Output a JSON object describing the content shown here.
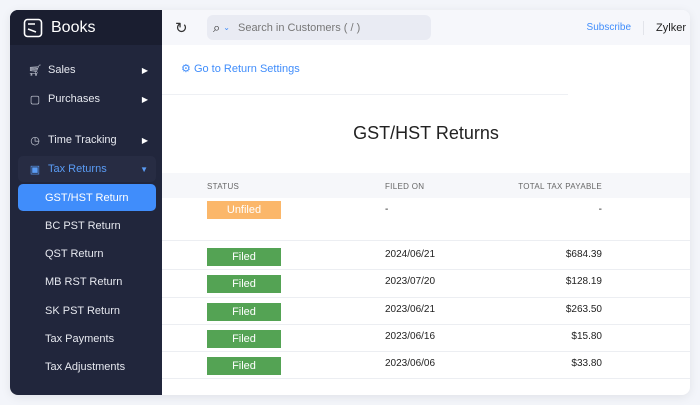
{
  "app": {
    "name": "Books"
  },
  "sidebar": {
    "items": [
      {
        "label": "Sales",
        "icon": "cart-icon"
      },
      {
        "label": "Purchases",
        "icon": "bag-icon"
      },
      {
        "label": "Time Tracking",
        "icon": "stopwatch-icon"
      },
      {
        "label": "Tax Returns",
        "icon": "tax-icon"
      }
    ],
    "sub_items": [
      "GST/HST Return",
      "BC PST Return",
      "QST Return",
      "MB RST Return",
      "SK PST Return",
      "Tax Payments",
      "Tax Adjustments"
    ]
  },
  "header": {
    "search_placeholder": "Search in Customers ( / )",
    "subscribe": "Subscribe",
    "org": "Zylker"
  },
  "main": {
    "settings_link": "Go to Return Settings",
    "title": "GST/HST Returns",
    "columns": [
      "STATUS",
      "FILED ON",
      "TOTAL TAX PAYABLE"
    ],
    "rows": [
      {
        "status": "Unfiled",
        "filed_on": "-",
        "total": "-"
      },
      {
        "status": "Filed",
        "filed_on": "2024/06/21",
        "total": "$684.39"
      },
      {
        "status": "Filed",
        "filed_on": "2023/07/20",
        "total": "$128.19"
      },
      {
        "status": "Filed",
        "filed_on": "2023/06/21",
        "total": "$263.50"
      },
      {
        "status": "Filed",
        "filed_on": "2023/06/16",
        "total": "$15.80"
      },
      {
        "status": "Filed",
        "filed_on": "2023/06/06",
        "total": "$33.80"
      }
    ]
  },
  "colors": {
    "accent": "#408dfb",
    "filed": "#54a354",
    "unfiled": "#fbb76a",
    "sidebar": "#21263c"
  }
}
